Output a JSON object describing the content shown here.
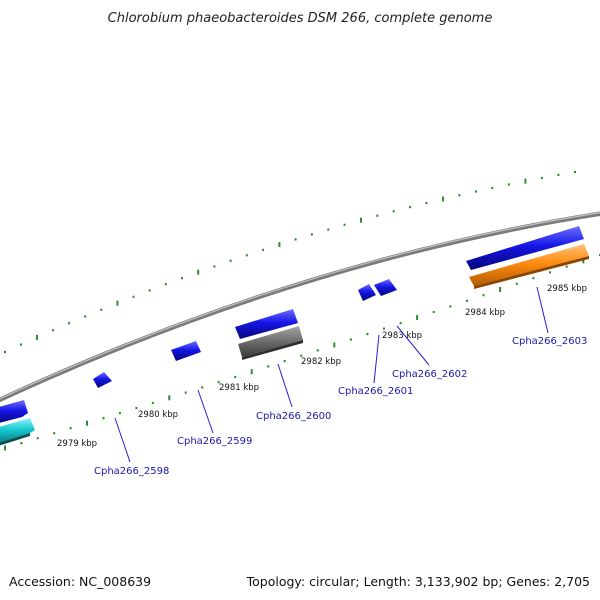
{
  "title": "Chlorobium phaeobacteroides DSM 266, complete genome",
  "accession": "Accession: NC_008639",
  "summary": "Topology: circular; Length: 3,133,902 bp; Genes: 2,705",
  "colors": {
    "backbone": "#8a8a8a",
    "tick": "#2e8b2e",
    "cds": "#1515e6",
    "cds_alt": "#15c8cf",
    "pseudo": "#707070",
    "rna": "#ff8c10",
    "label": "#1a1aaa"
  },
  "kbp_ticks": [
    "2979 kbp",
    "2980 kbp",
    "2981 kbp",
    "2982 kbp",
    "2983 kbp",
    "2984 kbp",
    "2985 kbp"
  ],
  "genes": [
    {
      "locus": "Cpha266_2598"
    },
    {
      "locus": "Cpha266_2599"
    },
    {
      "locus": "Cpha266_2600"
    },
    {
      "locus": "Cpha266_2601"
    },
    {
      "locus": "Cpha266_2602"
    },
    {
      "locus": "Cpha266_2603"
    }
  ]
}
